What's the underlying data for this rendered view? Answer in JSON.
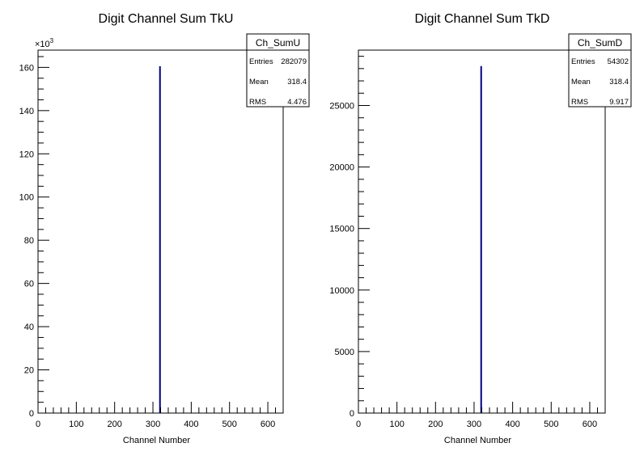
{
  "chart_data": [
    {
      "type": "histogram",
      "title": "Digit Channel Sum TkU",
      "xlabel": "Channel Number",
      "ylabel": "",
      "y_multiplier_label": "×10",
      "y_multiplier_exp": "3",
      "xlim": [
        0,
        640
      ],
      "ylim": [
        0,
        168
      ],
      "x_ticks": [
        0,
        100,
        200,
        300,
        400,
        500,
        600
      ],
      "x_tick_labels": [
        "0",
        "100",
        "200",
        "300",
        "400",
        "500",
        "600"
      ],
      "y_ticks": [
        0,
        20,
        40,
        60,
        80,
        100,
        120,
        140,
        160
      ],
      "y_tick_labels": [
        "0",
        "20",
        "40",
        "60",
        "80",
        "100",
        "120",
        "140",
        "160"
      ],
      "bins": [
        {
          "x": 318.4,
          "y": 160.5
        }
      ],
      "line_color": "#000080",
      "stats": {
        "name": "Ch_SumU",
        "rows": [
          {
            "label": "Entries",
            "value": "282079"
          },
          {
            "label": "Mean",
            "value": "318.4"
          },
          {
            "label": "RMS",
            "value": "4.476"
          }
        ]
      }
    },
    {
      "type": "histogram",
      "title": "Digit Channel Sum TkD",
      "xlabel": "Channel Number",
      "ylabel": "",
      "xlim": [
        0,
        640
      ],
      "ylim": [
        0,
        29500
      ],
      "x_ticks": [
        0,
        100,
        200,
        300,
        400,
        500,
        600
      ],
      "x_tick_labels": [
        "0",
        "100",
        "200",
        "300",
        "400",
        "500",
        "600"
      ],
      "y_ticks": [
        0,
        5000,
        10000,
        15000,
        20000,
        25000
      ],
      "y_tick_labels": [
        "0",
        "5000",
        "10000",
        "15000",
        "20000",
        "25000"
      ],
      "bins": [
        {
          "x": 318.4,
          "y": 28200
        }
      ],
      "line_color": "#000080",
      "stats": {
        "name": "Ch_SumD",
        "rows": [
          {
            "label": "Entries",
            "value": "54302"
          },
          {
            "label": "Mean",
            "value": "318.4"
          },
          {
            "label": "RMS",
            "value": "9.917"
          }
        ]
      }
    }
  ]
}
